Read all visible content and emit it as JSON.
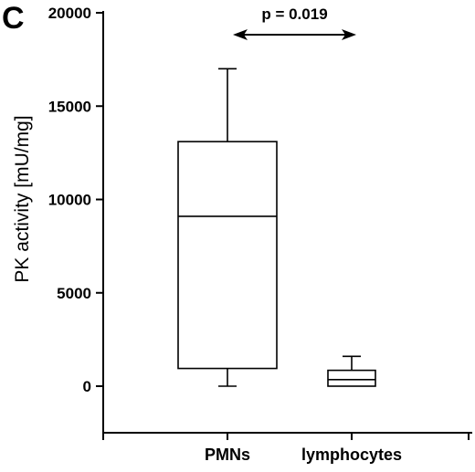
{
  "chart_data": {
    "type": "box",
    "panel_label": "C",
    "ylabel": "PK activity [mU/mg]",
    "xlabel": "",
    "ylim": [
      -2500,
      20000
    ],
    "yticks": [
      0,
      5000,
      10000,
      15000,
      20000
    ],
    "categories": [
      "PMNs",
      "lymphocytes"
    ],
    "boxes": [
      {
        "category": "PMNs",
        "whisker_low": 0,
        "q1": 950,
        "median": 9100,
        "q3": 13100,
        "whisker_high": 17000
      },
      {
        "category": "lymphocytes",
        "whisker_low": 0,
        "q1": 0,
        "median": 350,
        "q3": 850,
        "whisker_high": 1600
      }
    ],
    "annotation": {
      "text": "p = 0.019",
      "between": [
        "PMNs",
        "lymphocytes"
      ]
    },
    "grid": false,
    "legend": false
  }
}
